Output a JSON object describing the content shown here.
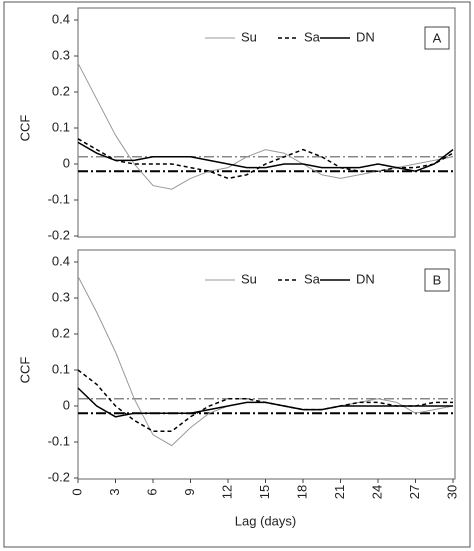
{
  "chart_data": [
    {
      "type": "line",
      "title": "A",
      "ylabel": "CCF",
      "x": [
        0,
        1.5,
        3,
        4.5,
        6,
        7.5,
        9,
        10.5,
        12,
        13.5,
        15,
        16.5,
        18,
        19.5,
        21,
        22.5,
        24,
        25.5,
        27,
        28.5,
        30
      ],
      "xlim": [
        0,
        30
      ],
      "ylim": [
        -0.2,
        0.4
      ],
      "yticks": [
        0.4,
        0.3,
        0.2,
        0.1,
        0,
        -0.1,
        -0.2
      ],
      "reference_lines": [
        {
          "value": 0.02,
          "color": "#888888"
        },
        {
          "value": -0.02,
          "color": "#000000"
        }
      ],
      "series": [
        {
          "name": "Su",
          "color": "#999999",
          "style": "solid",
          "values": [
            0.28,
            0.18,
            0.08,
            0.0,
            -0.06,
            -0.07,
            -0.04,
            -0.02,
            -0.01,
            0.02,
            0.04,
            0.03,
            0.0,
            -0.03,
            -0.04,
            -0.03,
            -0.02,
            -0.01,
            0.0,
            0.01,
            0.02
          ]
        },
        {
          "name": "Sa",
          "color": "#000000",
          "style": "dashed",
          "values": [
            0.07,
            0.04,
            0.01,
            0.0,
            0.0,
            0.0,
            -0.01,
            -0.02,
            -0.04,
            -0.03,
            0.0,
            0.02,
            0.04,
            0.02,
            -0.01,
            -0.02,
            -0.02,
            -0.01,
            -0.01,
            0.0,
            0.03
          ]
        },
        {
          "name": "DN",
          "color": "#000000",
          "style": "solid",
          "values": [
            0.06,
            0.03,
            0.01,
            0.01,
            0.02,
            0.02,
            0.02,
            0.01,
            0.0,
            -0.01,
            -0.01,
            0.0,
            0.0,
            -0.01,
            -0.01,
            -0.01,
            0.0,
            -0.01,
            -0.02,
            0.0,
            0.04
          ]
        }
      ]
    },
    {
      "type": "line",
      "title": "B",
      "ylabel": "CCF",
      "xlabel": "Lag (days)",
      "x": [
        0,
        1.5,
        3,
        4.5,
        6,
        7.5,
        9,
        10.5,
        12,
        13.5,
        15,
        16.5,
        18,
        19.5,
        21,
        22.5,
        24,
        25.5,
        27,
        28.5,
        30
      ],
      "xlim": [
        0,
        30
      ],
      "xticks": [
        0,
        3,
        6,
        9,
        12,
        15,
        18,
        21,
        24,
        27,
        30
      ],
      "ylim": [
        -0.2,
        0.4
      ],
      "yticks": [
        0.4,
        0.3,
        0.2,
        0.1,
        0,
        -0.1,
        -0.2
      ],
      "reference_lines": [
        {
          "value": 0.02,
          "color": "#888888"
        },
        {
          "value": -0.02,
          "color": "#000000"
        }
      ],
      "series": [
        {
          "name": "Su",
          "color": "#999999",
          "style": "solid",
          "values": [
            0.36,
            0.26,
            0.15,
            0.02,
            -0.08,
            -0.11,
            -0.06,
            -0.02,
            0.0,
            0.01,
            0.01,
            0.0,
            -0.01,
            -0.01,
            0.0,
            0.01,
            0.02,
            0.01,
            -0.02,
            -0.01,
            0.0
          ]
        },
        {
          "name": "Sa",
          "color": "#000000",
          "style": "dashed",
          "values": [
            0.1,
            0.06,
            0.0,
            -0.04,
            -0.07,
            -0.07,
            -0.03,
            0.0,
            0.02,
            0.02,
            0.01,
            0.0,
            -0.01,
            -0.01,
            0.0,
            0.01,
            0.01,
            0.0,
            0.0,
            0.01,
            0.01
          ]
        },
        {
          "name": "DN",
          "color": "#000000",
          "style": "solid",
          "values": [
            0.05,
            0.0,
            -0.03,
            -0.02,
            -0.02,
            -0.02,
            -0.02,
            -0.01,
            0.0,
            0.01,
            0.01,
            0.0,
            -0.01,
            -0.01,
            0.0,
            0.0,
            0.0,
            0.0,
            0.0,
            0.0,
            0.0
          ]
        }
      ]
    }
  ]
}
